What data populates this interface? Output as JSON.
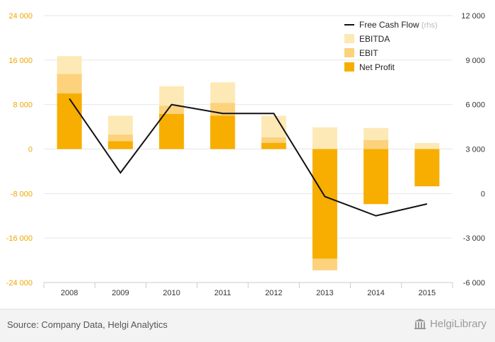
{
  "chart_data": {
    "type": "bar",
    "categories": [
      "2008",
      "2009",
      "2010",
      "2011",
      "2012",
      "2013",
      "2014",
      "2015"
    ],
    "series": [
      {
        "name": "EBITDA",
        "kind": "bar",
        "axis": "left",
        "color": "#fde9b6",
        "values": [
          16700,
          6000,
          11300,
          12000,
          6000,
          3900,
          3800,
          1100
        ]
      },
      {
        "name": "EBIT",
        "kind": "bar",
        "axis": "left",
        "color": "#fcd27d",
        "values": [
          13500,
          2600,
          7800,
          8300,
          2100,
          -21800,
          1600,
          0
        ]
      },
      {
        "name": "Net Profit",
        "kind": "bar",
        "axis": "left",
        "color": "#f7ae00",
        "values": [
          10000,
          1400,
          6300,
          6000,
          1100,
          -19700,
          -9900,
          -6700
        ]
      },
      {
        "name": "Free Cash Flow",
        "name_suffix": "(rhs)",
        "kind": "line",
        "axis": "right",
        "color": "#111111",
        "values": [
          6400,
          1400,
          6000,
          5400,
          5400,
          -200,
          -1500,
          -700
        ]
      }
    ],
    "y_left": {
      "min": -24000,
      "max": 24000,
      "ticks": [
        "24 000",
        "16 000",
        "8 000",
        "0",
        "-8 000",
        "-16 000",
        "-24 000"
      ],
      "tick_values": [
        24000,
        16000,
        8000,
        0,
        -8000,
        -16000,
        -24000
      ]
    },
    "y_right": {
      "min": -6000,
      "max": 12000,
      "ticks": [
        "12 000",
        "9 000",
        "6 000",
        "3 000",
        "0",
        "-3 000",
        "-6 000"
      ],
      "tick_values": [
        12000,
        9000,
        6000,
        3000,
        0,
        -3000,
        -6000
      ]
    },
    "grid": true,
    "legend_position": "top-right",
    "left_tick_color": "#f0a500",
    "right_tick_color": "#333333"
  },
  "footer": {
    "source": "Source: Company Data, Helgi Analytics",
    "brand": "HelgiLibrary",
    "brand_icon": "library-building-icon"
  }
}
